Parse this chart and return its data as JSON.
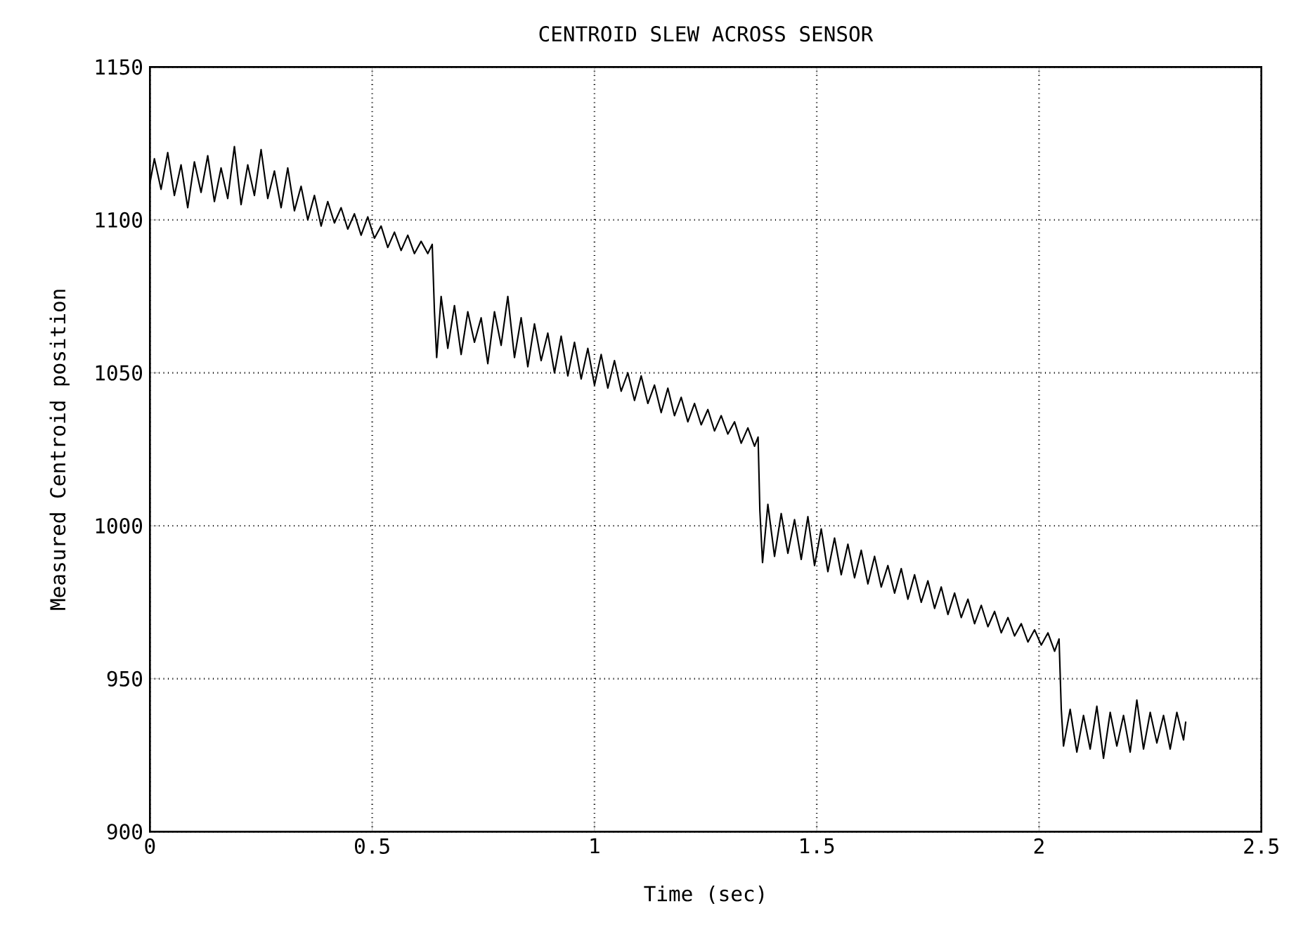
{
  "chart_data": {
    "type": "line",
    "title": "CENTROID SLEW ACROSS SENSOR",
    "xlabel": "Time (sec)",
    "ylabel": "Measured Centroid position",
    "xlim": [
      0,
      2.5
    ],
    "ylim": [
      900,
      1150
    ],
    "xticks": [
      0,
      0.5,
      1,
      1.5,
      2,
      2.5
    ],
    "yticks": [
      900,
      950,
      1000,
      1050,
      1100,
      1150
    ],
    "grid": true,
    "series": [
      {
        "color": "#000000",
        "x": [
          0,
          0.01,
          0.025,
          0.04,
          0.055,
          0.07,
          0.085,
          0.1,
          0.115,
          0.13,
          0.145,
          0.16,
          0.175,
          0.19,
          0.205,
          0.22,
          0.235,
          0.25,
          0.265,
          0.28,
          0.295,
          0.31,
          0.325,
          0.34,
          0.355,
          0.37,
          0.385,
          0.4,
          0.415,
          0.43,
          0.445,
          0.46,
          0.475,
          0.49,
          0.505,
          0.52,
          0.535,
          0.55,
          0.565,
          0.58,
          0.595,
          0.61,
          0.625,
          0.635,
          0.64,
          0.645,
          0.655,
          0.67,
          0.685,
          0.7,
          0.715,
          0.73,
          0.745,
          0.76,
          0.775,
          0.79,
          0.805,
          0.82,
          0.835,
          0.85,
          0.865,
          0.88,
          0.895,
          0.91,
          0.925,
          0.94,
          0.955,
          0.97,
          0.985,
          1.0,
          1.015,
          1.03,
          1.045,
          1.06,
          1.075,
          1.09,
          1.105,
          1.12,
          1.135,
          1.15,
          1.165,
          1.18,
          1.195,
          1.21,
          1.225,
          1.24,
          1.255,
          1.27,
          1.285,
          1.3,
          1.315,
          1.33,
          1.345,
          1.36,
          1.368,
          1.372,
          1.378,
          1.39,
          1.405,
          1.42,
          1.435,
          1.45,
          1.465,
          1.48,
          1.495,
          1.51,
          1.525,
          1.54,
          1.555,
          1.57,
          1.585,
          1.6,
          1.615,
          1.63,
          1.645,
          1.66,
          1.675,
          1.69,
          1.705,
          1.72,
          1.735,
          1.75,
          1.765,
          1.78,
          1.795,
          1.81,
          1.825,
          1.84,
          1.855,
          1.87,
          1.885,
          1.9,
          1.915,
          1.93,
          1.945,
          1.96,
          1.975,
          1.99,
          2.005,
          2.02,
          2.035,
          2.045,
          2.05,
          2.055,
          2.07,
          2.085,
          2.1,
          2.115,
          2.13,
          2.145,
          2.16,
          2.175,
          2.19,
          2.205,
          2.22,
          2.235,
          2.25,
          2.265,
          2.28,
          2.295,
          2.31,
          2.325,
          2.33
        ],
        "values": [
          1112,
          1120,
          1110,
          1122,
          1108,
          1118,
          1104,
          1119,
          1109,
          1121,
          1106,
          1117,
          1107,
          1124,
          1105,
          1118,
          1108,
          1123,
          1107,
          1116,
          1104,
          1117,
          1103,
          1111,
          1100,
          1108,
          1098,
          1106,
          1099,
          1104,
          1097,
          1102,
          1095,
          1101,
          1094,
          1098,
          1091,
          1096,
          1090,
          1095,
          1089,
          1093,
          1089,
          1092,
          1070,
          1055,
          1075,
          1058,
          1072,
          1056,
          1070,
          1060,
          1068,
          1053,
          1070,
          1059,
          1075,
          1055,
          1068,
          1052,
          1066,
          1054,
          1063,
          1050,
          1062,
          1049,
          1060,
          1048,
          1058,
          1046,
          1056,
          1045,
          1054,
          1044,
          1050,
          1041,
          1049,
          1040,
          1046,
          1037,
          1045,
          1036,
          1042,
          1034,
          1040,
          1033,
          1038,
          1031,
          1036,
          1030,
          1034,
          1027,
          1032,
          1026,
          1029,
          1005,
          988,
          1007,
          990,
          1004,
          991,
          1002,
          989,
          1003,
          987,
          999,
          985,
          996,
          984,
          994,
          983,
          992,
          981,
          990,
          980,
          987,
          978,
          986,
          976,
          984,
          975,
          982,
          973,
          980,
          971,
          978,
          970,
          976,
          968,
          974,
          967,
          972,
          965,
          970,
          964,
          968,
          962,
          966,
          961,
          965,
          959,
          963,
          940,
          928,
          940,
          926,
          938,
          927,
          941,
          924,
          939,
          928,
          938,
          926,
          943,
          927,
          939,
          929,
          938,
          927,
          939,
          930,
          936
        ]
      }
    ]
  }
}
